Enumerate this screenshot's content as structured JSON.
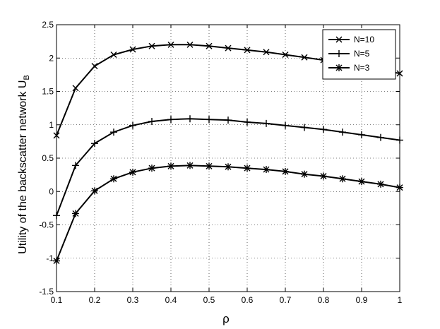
{
  "chart_data": {
    "type": "line",
    "title": "",
    "xlabel": "ρ",
    "ylabel": "Utility of the backscatter network U",
    "ylabel_subscript": "B",
    "xlim": [
      0.1,
      1
    ],
    "ylim": [
      -1.5,
      2.5
    ],
    "xticks": [
      "0.1",
      "0.2",
      "0.3",
      "0.4",
      "0.5",
      "0.6",
      "0.7",
      "0.8",
      "0.9",
      "1"
    ],
    "yticks": [
      "-1.5",
      "-1",
      "-0.5",
      "0",
      "0.5",
      "1",
      "1.5",
      "2",
      "2.5"
    ],
    "grid": true,
    "legend_position": "top-right",
    "x": [
      0.1,
      0.15,
      0.2,
      0.25,
      0.3,
      0.35,
      0.4,
      0.45,
      0.5,
      0.55,
      0.6,
      0.65,
      0.7,
      0.75,
      0.8,
      0.85,
      0.9,
      0.95,
      1.0
    ],
    "series": [
      {
        "name": "N=10",
        "marker": "x",
        "color": "#000000",
        "values": [
          0.84,
          1.55,
          1.88,
          2.05,
          2.13,
          2.18,
          2.2,
          2.2,
          2.18,
          2.15,
          2.12,
          2.09,
          2.05,
          2.01,
          1.97,
          1.92,
          1.87,
          1.82,
          1.77
        ]
      },
      {
        "name": "N=5",
        "marker": "+",
        "color": "#000000",
        "values": [
          -0.36,
          0.39,
          0.72,
          0.89,
          0.99,
          1.05,
          1.08,
          1.09,
          1.08,
          1.07,
          1.04,
          1.02,
          0.99,
          0.96,
          0.93,
          0.89,
          0.85,
          0.81,
          0.77
        ]
      },
      {
        "name": "N=3",
        "marker": "*",
        "color": "#000000",
        "values": [
          -1.04,
          -0.33,
          0.01,
          0.19,
          0.29,
          0.35,
          0.38,
          0.39,
          0.38,
          0.37,
          0.35,
          0.33,
          0.3,
          0.26,
          0.23,
          0.19,
          0.15,
          0.11,
          0.06
        ]
      }
    ]
  }
}
